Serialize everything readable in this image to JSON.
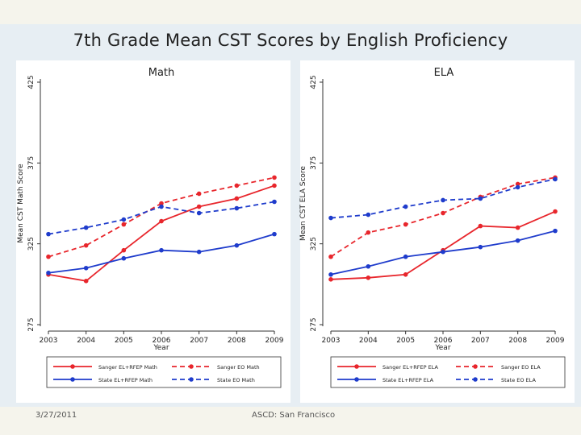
{
  "title": "7th Grade Mean CST Scores by English Proficiency",
  "footer": {
    "date": "3/27/2011",
    "center": "ASCD: San Francisco"
  },
  "colors": {
    "red": "#e8262c",
    "blue": "#1f3ccc"
  },
  "chart_data": [
    {
      "type": "line",
      "panel_title": "Math",
      "xlabel": "Year",
      "ylabel": "Mean CST Math Score",
      "x": [
        2003,
        2004,
        2005,
        2006,
        2007,
        2008,
        2009
      ],
      "xticks": [
        "2003",
        "2004",
        "2005",
        "2006",
        "2007",
        "2008",
        "2009"
      ],
      "ylim": [
        275,
        425
      ],
      "yticks": [
        "275",
        "325",
        "375",
        "425"
      ],
      "series": [
        {
          "name": "Sanger EL+RFEP Math",
          "color": "red",
          "dashed": false,
          "values": [
            306,
            302,
            321,
            339,
            348,
            353,
            361
          ]
        },
        {
          "name": "Sanger EO Math",
          "color": "red",
          "dashed": true,
          "values": [
            317,
            324,
            337,
            350,
            356,
            361,
            366
          ]
        },
        {
          "name": "State EL+RFEP Math",
          "color": "blue",
          "dashed": false,
          "values": [
            307,
            310,
            316,
            321,
            320,
            324,
            331
          ]
        },
        {
          "name": "State EO Math",
          "color": "blue",
          "dashed": true,
          "values": [
            331,
            335,
            340,
            348,
            344,
            347,
            351
          ]
        }
      ]
    },
    {
      "type": "line",
      "panel_title": "ELA",
      "xlabel": "Year",
      "ylabel": "Mean CST ELA Score",
      "x": [
        2003,
        2004,
        2005,
        2006,
        2007,
        2008,
        2009
      ],
      "xticks": [
        "2003",
        "2004",
        "2005",
        "2006",
        "2007",
        "2008",
        "2009"
      ],
      "ylim": [
        275,
        425
      ],
      "yticks": [
        "275",
        "325",
        "375",
        "425"
      ],
      "series": [
        {
          "name": "Sanger EL+RFEP ELA",
          "color": "red",
          "dashed": false,
          "values": [
            303,
            304,
            306,
            321,
            336,
            335,
            345
          ]
        },
        {
          "name": "Sanger EO ELA",
          "color": "red",
          "dashed": true,
          "values": [
            317,
            332,
            337,
            344,
            354,
            362,
            366
          ]
        },
        {
          "name": "State EL+RFEP ELA",
          "color": "blue",
          "dashed": false,
          "values": [
            306,
            311,
            317,
            320,
            323,
            327,
            333
          ]
        },
        {
          "name": "State EO ELA",
          "color": "blue",
          "dashed": true,
          "values": [
            341,
            343,
            348,
            352,
            353,
            360,
            365
          ]
        }
      ]
    }
  ]
}
